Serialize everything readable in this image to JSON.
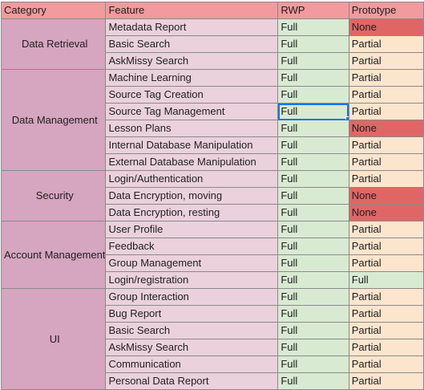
{
  "header": {
    "category": "Category",
    "feature": "Feature",
    "rwp": "RWP",
    "prototype": "Prototype"
  },
  "groups": [
    {
      "category": "Data Retrieval",
      "rows": [
        {
          "feature": "Metadata Report",
          "rwp": "Full",
          "prototype": "None"
        },
        {
          "feature": "Basic Search",
          "rwp": "Full",
          "prototype": "Partial"
        },
        {
          "feature": "AskMissy Search",
          "rwp": "Full",
          "prototype": "Partial"
        }
      ]
    },
    {
      "category": "Data Management",
      "rows": [
        {
          "feature": "Machine Learning",
          "rwp": "Full",
          "prototype": "Partial"
        },
        {
          "feature": "Source Tag Creation",
          "rwp": "Full",
          "prototype": "Partial"
        },
        {
          "feature": "Source Tag Management",
          "rwp": "Full",
          "prototype": "Partial"
        },
        {
          "feature": "Lesson Plans",
          "rwp": "Full",
          "prototype": "None"
        },
        {
          "feature": "Internal Database Manipulation",
          "rwp": "Full",
          "prototype": "Partial"
        },
        {
          "feature": "External Database Manipulation",
          "rwp": "Full",
          "prototype": "Partial"
        }
      ]
    },
    {
      "category": "Security",
      "rows": [
        {
          "feature": "Login/Authentication",
          "rwp": "Full",
          "prototype": "Partial"
        },
        {
          "feature": "Data Encryption, moving",
          "rwp": "Full",
          "prototype": "None"
        },
        {
          "feature": "Data Encryption, resting",
          "rwp": "Full",
          "prototype": "None"
        }
      ]
    },
    {
      "category": "Account Management",
      "rows": [
        {
          "feature": "User Profile",
          "rwp": "Full",
          "prototype": "Partial"
        },
        {
          "feature": "Feedback",
          "rwp": "Full",
          "prototype": "Partial"
        },
        {
          "feature": "Group Management",
          "rwp": "Full",
          "prototype": "Partial"
        },
        {
          "feature": "Login/registration",
          "rwp": "Full",
          "prototype": "Full"
        }
      ]
    },
    {
      "category": "UI",
      "rows": [
        {
          "feature": "Group Interaction",
          "rwp": "Full",
          "prototype": "Partial"
        },
        {
          "feature": "Bug Report",
          "rwp": "Full",
          "prototype": "Partial"
        },
        {
          "feature": "Basic Search",
          "rwp": "Full",
          "prototype": "Partial"
        },
        {
          "feature": "AskMissy Search",
          "rwp": "Full",
          "prototype": "Partial"
        },
        {
          "feature": "Communication",
          "rwp": "Full",
          "prototype": "Partial"
        },
        {
          "feature": "Personal Data Report",
          "rwp": "Full",
          "prototype": "Partial"
        }
      ]
    }
  ],
  "colors": {
    "header": "#f29a9d",
    "category": "#d6a5c0",
    "feature": "#ead1dc",
    "full": "#d9ead3",
    "partial": "#fce5cd",
    "none": "#e06666",
    "selection": "#1a73e8"
  },
  "selected_cell": "Source Tag Management / RWP"
}
